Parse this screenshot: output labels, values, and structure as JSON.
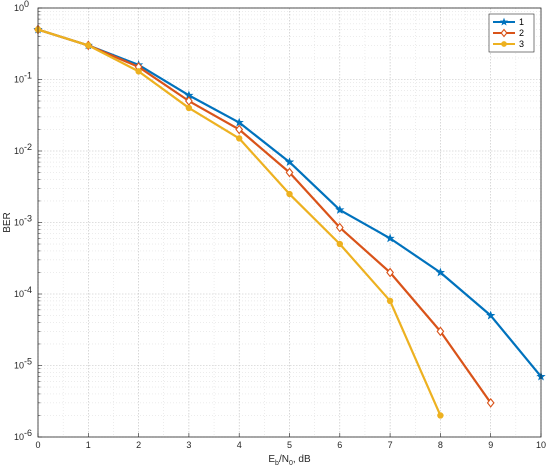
{
  "chart_data": {
    "type": "line",
    "x_scale": "linear",
    "y_scale": "log",
    "xlim": [
      0,
      10
    ],
    "ylim": [
      1e-06,
      1
    ],
    "x_ticks": [
      "0",
      "1",
      "2",
      "3",
      "4",
      "5",
      "6",
      "7",
      "8",
      "9",
      "10"
    ],
    "y_tick_bases": [
      "10",
      "10",
      "10",
      "10",
      "10",
      "10",
      "10"
    ],
    "y_tick_exponents": [
      "-6",
      "-5",
      "-4",
      "-3",
      "-2",
      "-1",
      "0"
    ],
    "xlabel": {
      "main": "E",
      "sub1": "b",
      "mid": "/N",
      "sub2": "0",
      "tail": ", dB"
    },
    "ylabel": "BER",
    "grid": "major and minor, dotted",
    "legend_position": "top-right",
    "series": [
      {
        "name": "1",
        "color": "#0072BD",
        "marker": "star",
        "x": [
          0,
          1,
          2,
          3,
          4,
          5,
          6,
          7,
          8,
          9,
          10
        ],
        "y": [
          0.5,
          0.3,
          0.16,
          0.06,
          0.025,
          0.007,
          0.0015,
          0.0006,
          0.0002,
          5e-05,
          7e-06
        ]
      },
      {
        "name": "2",
        "color": "#D95319",
        "marker": "diamond",
        "x": [
          0,
          1,
          2,
          3,
          4,
          5,
          6,
          7,
          8,
          9
        ],
        "y": [
          0.5,
          0.3,
          0.15,
          0.05,
          0.02,
          0.005,
          0.00085,
          0.0002,
          3e-05,
          3e-06
        ]
      },
      {
        "name": "3",
        "color": "#EDB120",
        "marker": "circle",
        "x": [
          0,
          1,
          2,
          3,
          4,
          5,
          6,
          7,
          8
        ],
        "y": [
          0.5,
          0.3,
          0.13,
          0.04,
          0.015,
          0.0025,
          0.0005,
          8e-05,
          2e-06
        ]
      }
    ]
  }
}
